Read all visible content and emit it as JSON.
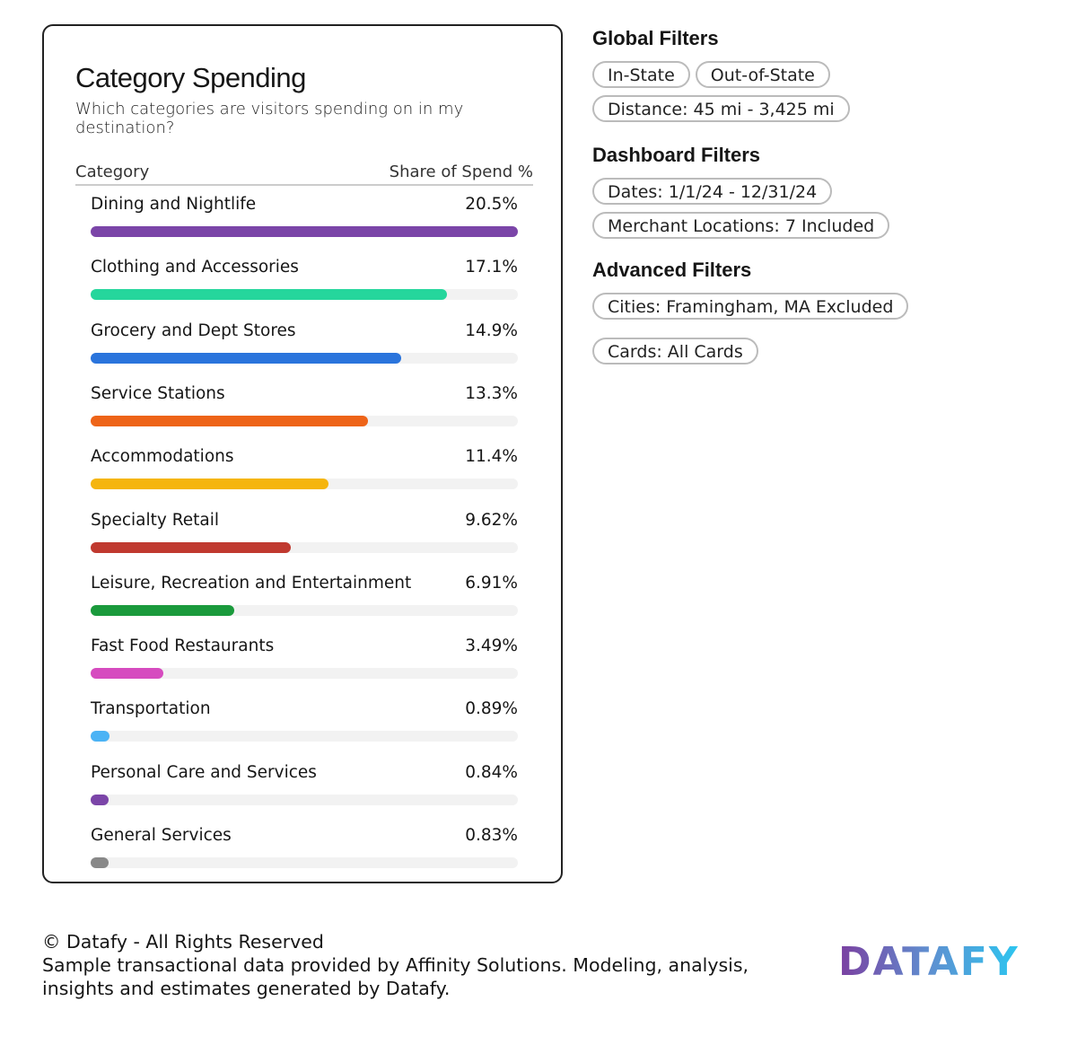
{
  "card": {
    "title": "Category Spending",
    "subtitle": "Which categories are visitors spending on in my destination?",
    "col_category": "Category",
    "col_share": "Share of Spend %"
  },
  "chart_data": {
    "type": "bar",
    "orientation": "horizontal",
    "categories": [
      "Dining and Nightlife",
      "Clothing and Accessories",
      "Grocery and Dept Stores",
      "Service Stations",
      "Accommodations",
      "Specialty Retail",
      "Leisure, Recreation and Entertainment",
      "Fast Food Restaurants",
      "Transportation",
      "Personal Care and Services",
      "General Services"
    ],
    "values": [
      20.5,
      17.1,
      14.9,
      13.3,
      11.4,
      9.62,
      6.91,
      3.49,
      0.89,
      0.84,
      0.83
    ],
    "labels": [
      "20.5%",
      "17.1%",
      "14.9%",
      "13.3%",
      "11.4%",
      "9.62%",
      "6.91%",
      "3.49%",
      "0.89%",
      "0.84%",
      "0.83%"
    ],
    "colors": [
      "#7b45a8",
      "#25d69c",
      "#2a74dc",
      "#ee6418",
      "#f5b50e",
      "#c0392f",
      "#1a9a3c",
      "#d64bbf",
      "#4bb3f5",
      "#7b45a8",
      "#888888"
    ],
    "xlim": [
      0,
      20.5
    ]
  },
  "filters": {
    "global": {
      "title": "Global Filters",
      "pills": [
        "In-State",
        "Out-of-State",
        "Distance: 45 mi - 3,425 mi"
      ]
    },
    "dashboard": {
      "title": "Dashboard Filters",
      "pills": [
        "Dates: 1/1/24 - 12/31/24",
        "Merchant Locations: 7 Included"
      ]
    },
    "advanced": {
      "title": "Advanced Filters",
      "pills": [
        "Cities: Framingham, MA Excluded",
        "Cards: All Cards"
      ]
    }
  },
  "footer": {
    "copyright": "© Datafy - All Rights Reserved",
    "note": "Sample transactional data provided by Affinity Solutions. Modeling, analysis, insights and estimates generated by Datafy.",
    "logo": "DATAFY"
  }
}
